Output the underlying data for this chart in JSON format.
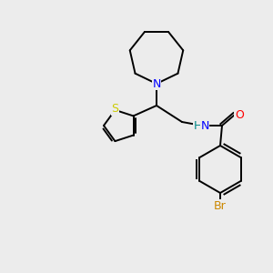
{
  "background_color": "#ececec",
  "atom_colors": {
    "N": "#0000ff",
    "S": "#cccc00",
    "O": "#ff0000",
    "Br": "#cc8800",
    "H": "#008888",
    "C": "#000000"
  },
  "bond_color": "#000000",
  "bond_width": 1.4,
  "font_size_atom": 9
}
